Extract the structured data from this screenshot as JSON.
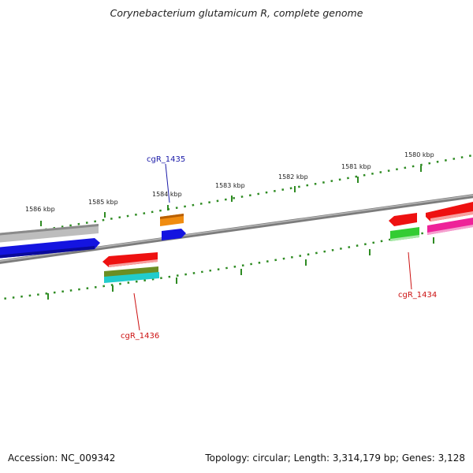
{
  "title": "Corynebacterium glutamicum R, complete genome",
  "accession_label": "Accession: NC_009342",
  "summary_label": "Topology: circular; Length: 3,314,179 bp; Genes: 3,128",
  "scale_ticks": [
    {
      "kbp": 1586,
      "label": "1586 kbp"
    },
    {
      "kbp": 1585,
      "label": "1585 kbp"
    },
    {
      "kbp": 1584,
      "label": "1584 kbp"
    },
    {
      "kbp": 1583,
      "label": "1583 kbp"
    },
    {
      "kbp": 1582,
      "label": "1582 kbp"
    },
    {
      "kbp": 1581,
      "label": "1581 kbp"
    },
    {
      "kbp": 1580,
      "label": "1580 kbp"
    }
  ],
  "gene_labels": [
    {
      "name": "cgR_1435",
      "color": "#1a1aa8"
    },
    {
      "name": "cgR_1436",
      "color": "#cc1111"
    },
    {
      "name": "cgR_1434",
      "color": "#cc1111"
    }
  ],
  "colors": {
    "backbone": "#808080",
    "scale": "#2e8b22",
    "feature_gray": "#bdbdbd",
    "feature_blue": "#1414e0",
    "feature_orange": "#f08c10",
    "feature_red": "#ee1111",
    "feature_olive": "#6b8e23",
    "feature_cyan": "#22cccc",
    "feature_green": "#33cc33",
    "feature_magenta": "#ee2299"
  }
}
